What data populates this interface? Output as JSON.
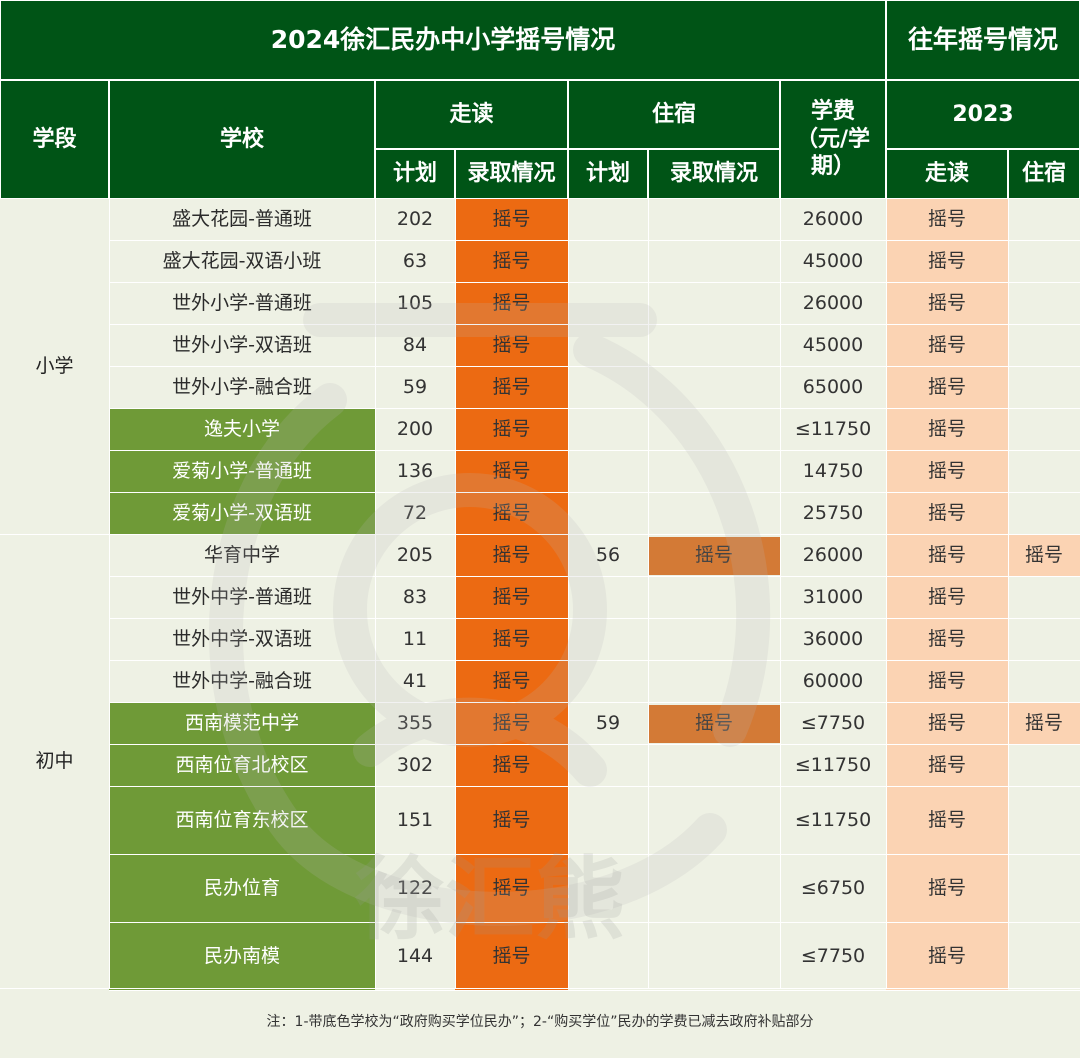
{
  "header": {
    "title_main": "2024徐汇民办中小学摇号情况",
    "title_prev": "往年摇号情况",
    "col_segment": "学段",
    "col_school": "学校",
    "group_walking": "走读",
    "group_boarding": "住宿",
    "col_plan": "计划",
    "col_status": "录取情况",
    "col_fee": "学费（元/学期）",
    "prev_year": "2023",
    "prev_walking": "走读",
    "prev_boarding": "住宿"
  },
  "segments": [
    {
      "name": "小学"
    },
    {
      "name": "初中"
    }
  ],
  "rows": [
    {
      "school": "盛大花园-普通班",
      "gov": false,
      "walk_plan": "202",
      "walk_status": "摇号",
      "board_plan": "",
      "board_status": "",
      "fee": "26000",
      "prev_walk": "摇号",
      "prev_board": ""
    },
    {
      "school": "盛大花园-双语小班",
      "gov": false,
      "walk_plan": "63",
      "walk_status": "摇号",
      "board_plan": "",
      "board_status": "",
      "fee": "45000",
      "prev_walk": "摇号",
      "prev_board": ""
    },
    {
      "school": "世外小学-普通班",
      "gov": false,
      "walk_plan": "105",
      "walk_status": "摇号",
      "board_plan": "",
      "board_status": "",
      "fee": "26000",
      "prev_walk": "摇号",
      "prev_board": ""
    },
    {
      "school": "世外小学-双语班",
      "gov": false,
      "walk_plan": "84",
      "walk_status": "摇号",
      "board_plan": "",
      "board_status": "",
      "fee": "45000",
      "prev_walk": "摇号",
      "prev_board": ""
    },
    {
      "school": "世外小学-融合班",
      "gov": false,
      "walk_plan": "59",
      "walk_status": "摇号",
      "board_plan": "",
      "board_status": "",
      "fee": "65000",
      "prev_walk": "摇号",
      "prev_board": ""
    },
    {
      "school": "逸夫小学",
      "gov": true,
      "walk_plan": "200",
      "walk_status": "摇号",
      "board_plan": "",
      "board_status": "",
      "fee": "≤11750",
      "prev_walk": "摇号",
      "prev_board": ""
    },
    {
      "school": "爱菊小学-普通班",
      "gov": true,
      "walk_plan": "136",
      "walk_status": "摇号",
      "board_plan": "",
      "board_status": "",
      "fee": "14750",
      "prev_walk": "摇号",
      "prev_board": ""
    },
    {
      "school": "爱菊小学-双语班",
      "gov": true,
      "walk_plan": "72",
      "walk_status": "摇号",
      "board_plan": "",
      "board_status": "",
      "fee": "25750",
      "prev_walk": "摇号",
      "prev_board": ""
    },
    {
      "school": "华育中学",
      "gov": false,
      "walk_plan": "205",
      "walk_status": "摇号",
      "board_plan": "56",
      "board_status": "摇号",
      "fee": "26000",
      "prev_walk": "摇号",
      "prev_board": "摇号"
    },
    {
      "school": "世外中学-普通班",
      "gov": false,
      "walk_plan": "83",
      "walk_status": "摇号",
      "board_plan": "",
      "board_status": "",
      "fee": "31000",
      "prev_walk": "摇号",
      "prev_board": ""
    },
    {
      "school": "世外中学-双语班",
      "gov": false,
      "walk_plan": "11",
      "walk_status": "摇号",
      "board_plan": "",
      "board_status": "",
      "fee": "36000",
      "prev_walk": "摇号",
      "prev_board": ""
    },
    {
      "school": "世外中学-融合班",
      "gov": false,
      "walk_plan": "41",
      "walk_status": "摇号",
      "board_plan": "",
      "board_status": "",
      "fee": "60000",
      "prev_walk": "摇号",
      "prev_board": ""
    },
    {
      "school": "西南模范中学",
      "gov": true,
      "walk_plan": "355",
      "walk_status": "摇号",
      "board_plan": "59",
      "board_status": "摇号",
      "fee": "≤7750",
      "prev_walk": "摇号",
      "prev_board": "摇号"
    },
    {
      "school": "西南位育北校区",
      "gov": true,
      "walk_plan": "302",
      "walk_status": "摇号",
      "board_plan": "",
      "board_status": "",
      "fee": "≤11750",
      "prev_walk": "摇号",
      "prev_board": ""
    },
    {
      "school": "西南位育东校区",
      "gov": true,
      "walk_plan": "151",
      "walk_status": "摇号",
      "board_plan": "",
      "board_status": "",
      "fee": "≤11750",
      "prev_walk": "摇号",
      "prev_board": ""
    },
    {
      "school": "民办位育",
      "gov": true,
      "walk_plan": "122",
      "walk_status": "摇号",
      "board_plan": "",
      "board_status": "",
      "fee": "≤6750",
      "prev_walk": "摇号",
      "prev_board": ""
    },
    {
      "school": "民办南模",
      "gov": true,
      "walk_plan": "144",
      "walk_status": "摇号",
      "board_plan": "",
      "board_status": "",
      "fee": "≤7750",
      "prev_walk": "摇号",
      "prev_board": ""
    }
  ],
  "footnote": "注：1-带底色学校为“政府购买学位民办”；2-“购买学位”民办的学费已减去政府补贴部分",
  "watermark": {
    "text": "徐汇熊"
  },
  "colors": {
    "header_green": "#005416",
    "gov_school_green": "#6f9a37",
    "lottery_orange": "#ec6a12",
    "prev_peach": "#fbd3b3",
    "background": "#eef1e4"
  }
}
